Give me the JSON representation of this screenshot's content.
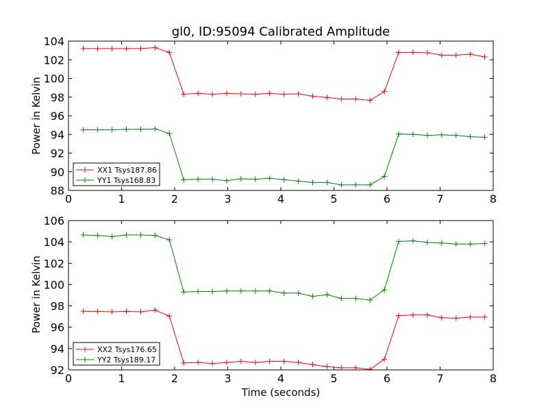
{
  "chart_data": {
    "title": "gl0, ID:95094 Calibrated Amplitude",
    "xlabel": "Time (seconds)",
    "xlim": [
      0,
      8
    ],
    "xticks": [
      0,
      1,
      2,
      3,
      4,
      5,
      6,
      7,
      8
    ],
    "x": [
      0.28,
      0.55,
      0.82,
      1.09,
      1.36,
      1.63,
      1.9,
      2.17,
      2.44,
      2.71,
      2.98,
      3.25,
      3.52,
      3.79,
      4.06,
      4.33,
      4.6,
      4.87,
      5.14,
      5.41,
      5.68,
      5.95,
      6.22,
      6.49,
      6.76,
      7.03,
      7.3,
      7.57,
      7.84
    ],
    "panels": [
      {
        "type": "line",
        "ylabel": "Power in Kelvin",
        "ylim": [
          88,
          104
        ],
        "yticks": [
          88,
          90,
          92,
          94,
          96,
          98,
          100,
          102,
          104
        ],
        "legend_position": "lower-left",
        "series": [
          {
            "name": "XX1 Tsys187.86",
            "color": "#ff0000",
            "values": [
              103.2,
              103.2,
              103.2,
              103.2,
              103.2,
              103.3,
              102.8,
              98.3,
              98.4,
              98.3,
              98.4,
              98.35,
              98.3,
              98.4,
              98.3,
              98.35,
              98.1,
              97.95,
              97.8,
              97.8,
              97.65,
              98.6,
              102.8,
              102.8,
              102.75,
              102.5,
              102.5,
              102.6,
              102.3
            ]
          },
          {
            "name": "YY1 Tsys168.83",
            "color": "#008000",
            "values": [
              94.5,
              94.5,
              94.5,
              94.55,
              94.55,
              94.6,
              94.1,
              89.15,
              89.2,
              89.2,
              89.05,
              89.25,
              89.2,
              89.3,
              89.15,
              89.0,
              88.85,
              88.85,
              88.6,
              88.6,
              88.6,
              89.5,
              94.05,
              94.0,
              93.9,
              93.95,
              93.9,
              93.75,
              93.7
            ]
          }
        ]
      },
      {
        "type": "line",
        "ylabel": "Power in Kelvin",
        "ylim": [
          92,
          106
        ],
        "yticks": [
          92,
          94,
          96,
          98,
          100,
          102,
          104,
          106
        ],
        "legend_position": "lower-left",
        "series": [
          {
            "name": "XX2 Tsys176.65",
            "color": "#ff0000",
            "values": [
              97.5,
              97.5,
              97.45,
              97.5,
              97.45,
              97.6,
              97.05,
              92.65,
              92.7,
              92.6,
              92.7,
              92.8,
              92.7,
              92.8,
              92.8,
              92.7,
              92.5,
              92.3,
              92.2,
              92.2,
              92.05,
              93.0,
              97.1,
              97.15,
              97.15,
              96.9,
              96.85,
              96.95,
              96.95
            ]
          },
          {
            "name": "YY2 Tsys189.17",
            "color": "#008000",
            "values": [
              104.65,
              104.6,
              104.5,
              104.65,
              104.65,
              104.6,
              104.2,
              99.3,
              99.35,
              99.35,
              99.4,
              99.4,
              99.4,
              99.4,
              99.2,
              99.2,
              98.9,
              99.05,
              98.7,
              98.7,
              98.55,
              99.5,
              104.05,
              104.1,
              103.95,
              103.9,
              103.8,
              103.8,
              103.85
            ]
          }
        ]
      }
    ]
  }
}
